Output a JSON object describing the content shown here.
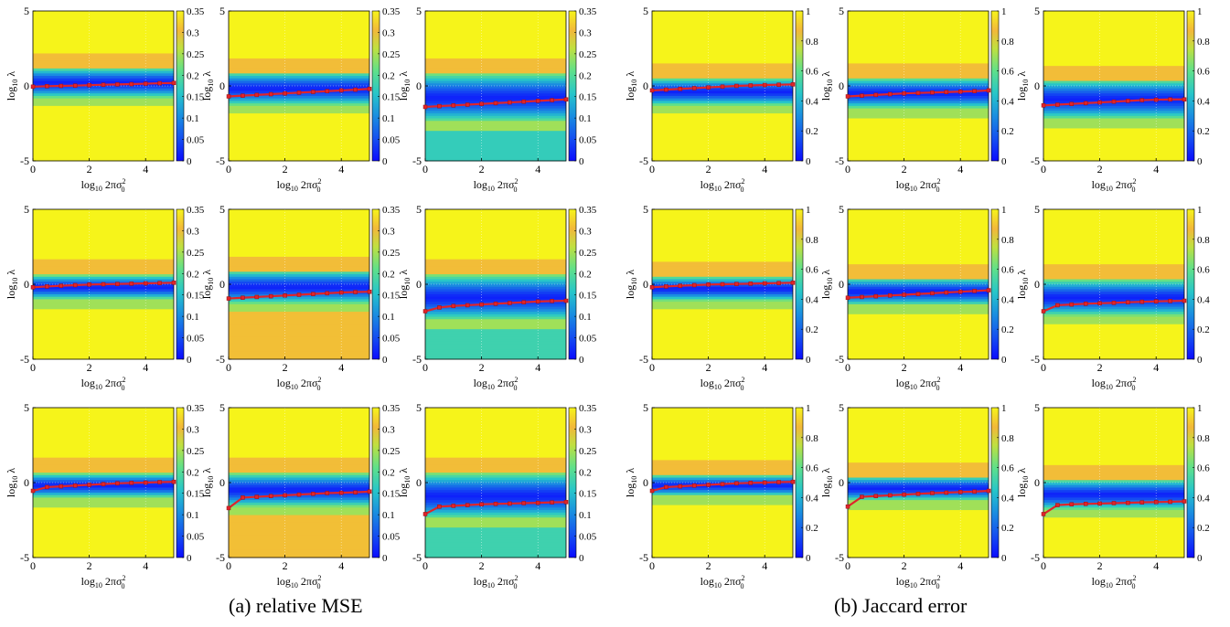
{
  "figure": {
    "caption_a": "(a) relative MSE",
    "caption_b": "(b) Jaccard error"
  },
  "common": {
    "xlabel": "log10 2πσ0²",
    "ylabel": "log10 λ",
    "xlim": [
      0,
      5
    ],
    "ylim": [
      -5,
      5
    ],
    "x_ticks": [
      "0",
      "2",
      "4"
    ],
    "y_ticks": [
      "5",
      "0",
      "-5"
    ],
    "x_points": [
      0,
      0.5,
      1,
      1.5,
      2,
      2.5,
      3,
      3.5,
      4,
      4.5,
      5
    ],
    "line_color": "#e0242a",
    "colormap": "parula"
  },
  "colorbars": {
    "mse": {
      "ticks": [
        "0",
        "0.05",
        "0.1",
        "0.15",
        "0.2",
        "0.25",
        "0.3",
        "0.35"
      ],
      "range": [
        0,
        0.35
      ]
    },
    "jaccard": {
      "ticks": [
        "0",
        "0.2",
        "0.4",
        "0.6",
        "0.8",
        "1"
      ],
      "range": [
        0,
        1
      ]
    }
  },
  "chart_data": [
    {
      "type": "heatmap",
      "panel": "a-1-1",
      "group": "mse",
      "band_center": 0.2,
      "band_halfwidth": 1.0,
      "floor_low": 0.35,
      "floor_high": 0.35,
      "series": [
        {
          "y": [
            -0.05,
            -0.02,
            0.0,
            0.02,
            0.05,
            0.08,
            0.1,
            0.12,
            0.15,
            0.18,
            0.2
          ]
        }
      ]
    },
    {
      "type": "heatmap",
      "panel": "a-1-2",
      "group": "mse",
      "band_center": -0.2,
      "band_halfwidth": 1.1,
      "floor_low": 0.35,
      "floor_high": 0.35,
      "series": [
        {
          "y": [
            -0.7,
            -0.65,
            -0.6,
            -0.55,
            -0.5,
            -0.45,
            -0.4,
            -0.35,
            -0.3,
            -0.25,
            -0.2
          ]
        }
      ]
    },
    {
      "type": "heatmap",
      "panel": "a-1-3",
      "group": "mse",
      "band_center": -0.8,
      "band_halfwidth": 1.6,
      "floor_low": 0.17,
      "floor_high": 0.35,
      "series": [
        {
          "y": [
            -1.4,
            -1.35,
            -1.3,
            -1.25,
            -1.2,
            -1.15,
            -1.1,
            -1.05,
            -1.0,
            -0.95,
            -0.9
          ]
        }
      ]
    },
    {
      "type": "heatmap",
      "panel": "a-2-1",
      "group": "mse",
      "band_center": -0.2,
      "band_halfwidth": 0.8,
      "floor_low": 0.35,
      "floor_high": 0.35,
      "series": [
        {
          "y": [
            -0.2,
            -0.15,
            -0.1,
            -0.06,
            -0.02,
            0.0,
            0.02,
            0.04,
            0.06,
            0.08,
            0.1
          ]
        }
      ]
    },
    {
      "type": "heatmap",
      "panel": "a-2-2",
      "group": "mse",
      "band_center": -0.2,
      "band_halfwidth": 1.1,
      "floor_low": 0.31,
      "floor_high": 0.35,
      "series": [
        {
          "y": [
            -0.95,
            -0.9,
            -0.85,
            -0.8,
            -0.75,
            -0.7,
            -0.65,
            -0.6,
            -0.55,
            -0.52,
            -0.5
          ]
        }
      ]
    },
    {
      "type": "heatmap",
      "panel": "a-2-3",
      "group": "mse",
      "band_center": -0.9,
      "band_halfwidth": 1.5,
      "floor_low": 0.18,
      "floor_high": 0.35,
      "series": [
        {
          "y": [
            -1.8,
            -1.55,
            -1.45,
            -1.4,
            -1.35,
            -1.3,
            -1.25,
            -1.2,
            -1.15,
            -1.12,
            -1.1
          ]
        }
      ]
    },
    {
      "type": "heatmap",
      "panel": "a-3-1",
      "group": "mse",
      "band_center": -0.2,
      "band_halfwidth": 0.8,
      "floor_low": 0.35,
      "floor_high": 0.35,
      "series": [
        {
          "y": [
            -0.55,
            -0.3,
            -0.25,
            -0.2,
            -0.15,
            -0.1,
            -0.05,
            -0.02,
            0.0,
            0.03,
            0.05
          ]
        }
      ]
    },
    {
      "type": "heatmap",
      "panel": "a-3-2",
      "group": "mse",
      "band_center": -0.5,
      "band_halfwidth": 1.1,
      "floor_low": 0.31,
      "floor_high": 0.35,
      "series": [
        {
          "y": [
            -1.7,
            -1.0,
            -0.95,
            -0.9,
            -0.85,
            -0.8,
            -0.75,
            -0.7,
            -0.68,
            -0.65,
            -0.6
          ]
        }
      ]
    },
    {
      "type": "heatmap",
      "panel": "a-3-3",
      "group": "mse",
      "band_center": -0.9,
      "band_halfwidth": 1.5,
      "floor_low": 0.18,
      "floor_high": 0.35,
      "series": [
        {
          "y": [
            -2.1,
            -1.6,
            -1.55,
            -1.5,
            -1.45,
            -1.42,
            -1.4,
            -1.37,
            -1.35,
            -1.32,
            -1.3
          ]
        }
      ]
    },
    {
      "type": "heatmap",
      "panel": "b-1-1",
      "group": "jaccard",
      "band_center": -0.4,
      "band_halfwidth": 0.9,
      "floor_low": 1,
      "floor_high": 1,
      "series": [
        {
          "y": [
            -0.3,
            -0.25,
            -0.2,
            -0.15,
            -0.1,
            -0.05,
            0.0,
            0.03,
            0.06,
            0.08,
            0.1
          ]
        }
      ]
    },
    {
      "type": "heatmap",
      "panel": "b-1-2",
      "group": "jaccard",
      "band_center": -0.5,
      "band_halfwidth": 1.0,
      "floor_low": 1,
      "floor_high": 1,
      "series": [
        {
          "y": [
            -0.7,
            -0.65,
            -0.6,
            -0.55,
            -0.5,
            -0.47,
            -0.44,
            -0.41,
            -0.38,
            -0.35,
            -0.3
          ]
        }
      ]
    },
    {
      "type": "heatmap",
      "panel": "b-1-3",
      "group": "jaccard",
      "band_center": -0.9,
      "band_halfwidth": 1.3,
      "floor_low": 1,
      "floor_high": 1,
      "series": [
        {
          "y": [
            -1.3,
            -1.25,
            -1.2,
            -1.15,
            -1.1,
            -1.05,
            -1.0,
            -0.95,
            -0.92,
            -0.9,
            -0.9
          ]
        }
      ]
    },
    {
      "type": "heatmap",
      "panel": "b-2-1",
      "group": "jaccard",
      "band_center": -0.3,
      "band_halfwidth": 0.8,
      "floor_low": 1,
      "floor_high": 1,
      "series": [
        {
          "y": [
            -0.2,
            -0.15,
            -0.1,
            -0.06,
            -0.02,
            0.0,
            0.02,
            0.04,
            0.06,
            0.08,
            0.1
          ]
        }
      ]
    },
    {
      "type": "heatmap",
      "panel": "b-2-2",
      "group": "jaccard",
      "band_center": -0.5,
      "band_halfwidth": 0.9,
      "floor_low": 1,
      "floor_high": 1,
      "series": [
        {
          "y": [
            -0.9,
            -0.85,
            -0.8,
            -0.75,
            -0.7,
            -0.65,
            -0.6,
            -0.55,
            -0.5,
            -0.45,
            -0.4
          ]
        }
      ]
    },
    {
      "type": "heatmap",
      "panel": "b-2-3",
      "group": "jaccard",
      "band_center": -0.9,
      "band_halfwidth": 1.2,
      "floor_low": 1,
      "floor_high": 1,
      "series": [
        {
          "y": [
            -1.8,
            -1.4,
            -1.35,
            -1.3,
            -1.27,
            -1.24,
            -1.2,
            -1.17,
            -1.14,
            -1.12,
            -1.1
          ]
        }
      ]
    },
    {
      "type": "heatmap",
      "panel": "b-3-1",
      "group": "jaccard",
      "band_center": -0.2,
      "band_halfwidth": 0.7,
      "floor_low": 1,
      "floor_high": 1,
      "series": [
        {
          "y": [
            -0.55,
            -0.3,
            -0.25,
            -0.2,
            -0.15,
            -0.1,
            -0.05,
            -0.02,
            0.0,
            0.03,
            0.05
          ]
        }
      ]
    },
    {
      "type": "heatmap",
      "panel": "b-3-2",
      "group": "jaccard",
      "band_center": -0.4,
      "band_halfwidth": 0.8,
      "floor_low": 1,
      "floor_high": 1,
      "series": [
        {
          "y": [
            -1.6,
            -0.95,
            -0.9,
            -0.85,
            -0.8,
            -0.75,
            -0.7,
            -0.67,
            -0.63,
            -0.6,
            -0.55
          ]
        }
      ]
    },
    {
      "type": "heatmap",
      "panel": "b-3-3",
      "group": "jaccard",
      "band_center": -0.8,
      "band_halfwidth": 1.0,
      "floor_low": 1,
      "floor_high": 1,
      "series": [
        {
          "y": [
            -2.1,
            -1.5,
            -1.45,
            -1.42,
            -1.4,
            -1.37,
            -1.35,
            -1.32,
            -1.3,
            -1.28,
            -1.25
          ]
        }
      ]
    }
  ]
}
